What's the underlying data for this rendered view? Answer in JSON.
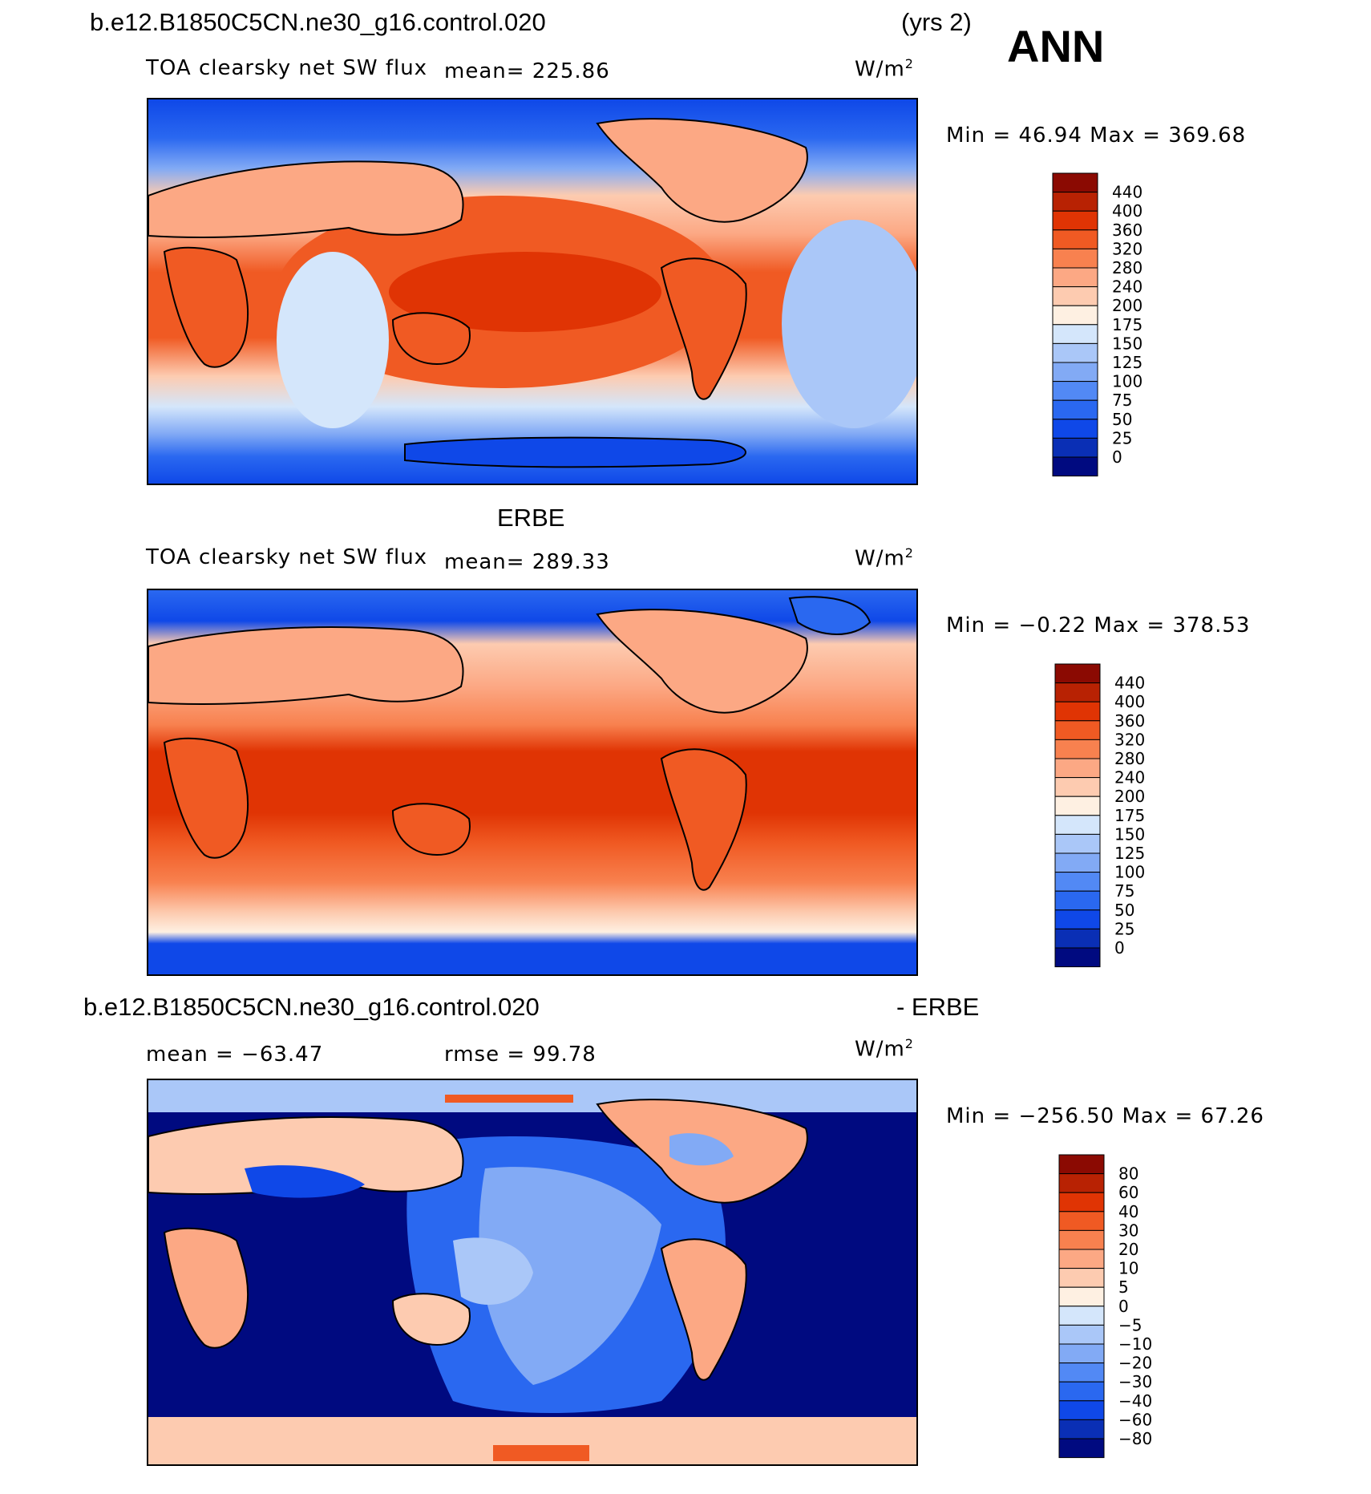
{
  "top": {
    "case_title": "b.e12.B1850C5CN.ne30_g16.control.020",
    "years": "(yrs 2)",
    "season": "ANN",
    "var_label": "TOA clearsky net SW flux",
    "mean_label": "mean= 225.86",
    "units_base": "W/m",
    "units_exp": "2",
    "minmax": "Min =   46.94  Max = 369.68"
  },
  "middle": {
    "case_title": "ERBE",
    "var_label": "TOA clearsky net SW flux",
    "mean_label": "mean= 289.33",
    "units_base": "W/m",
    "units_exp": "2",
    "minmax": "Min =   −0.22  Max = 378.53"
  },
  "bottom": {
    "case_title": "b.e12.B1850C5CN.ne30_g16.control.020",
    "minus_label": "- ERBE",
    "mean_label": "mean = −63.47",
    "rmse_label": "rmse =   99.78",
    "units_base": "W/m",
    "units_exp": "2",
    "minmax": "Min = −256.50  Max =   67.26"
  },
  "colors": {
    "abs_scale": [
      "#000a80",
      "#0a2fb5",
      "#0f48e8",
      "#2a68f0",
      "#5289f5",
      "#82aaf5",
      "#aac7f8",
      "#d4e6fb",
      "#fef0e2",
      "#fdcbb0",
      "#fca884",
      "#f8814f",
      "#f05a23",
      "#e03404",
      "#b82203",
      "#8b0a02"
    ],
    "diff_scale": [
      "#000a80",
      "#0a2fb5",
      "#0f48e8",
      "#2a68f0",
      "#5289f5",
      "#82aaf5",
      "#aac7f8",
      "#d4e6fb",
      "#fef0e2",
      "#fdcbb0",
      "#fca884",
      "#f8814f",
      "#f05a23",
      "#e03404",
      "#b82203",
      "#8b0a02"
    ]
  },
  "chart_data": [
    {
      "type": "heatmap",
      "title": "TOA clearsky net SW flux",
      "case": "b.e12.B1850C5CN.ne30_g16.control.020",
      "season": "ANN",
      "units": "W/m2",
      "mean": 225.86,
      "min": 46.94,
      "max": 369.68,
      "levels": [
        0,
        25,
        50,
        75,
        100,
        125,
        150,
        175,
        200,
        240,
        280,
        320,
        360,
        400,
        440
      ],
      "level_labels": [
        "440",
        "400",
        "360",
        "320",
        "280",
        "240",
        "200",
        "175",
        "150",
        "125",
        "100",
        "75",
        "50",
        "25",
        "0"
      ]
    },
    {
      "type": "heatmap",
      "title": "TOA clearsky net SW flux",
      "case": "ERBE",
      "units": "W/m2",
      "mean": 289.33,
      "min": -0.22,
      "max": 378.53,
      "levels": [
        0,
        25,
        50,
        75,
        100,
        125,
        150,
        175,
        200,
        240,
        280,
        320,
        360,
        400,
        440
      ],
      "level_labels": [
        "440",
        "400",
        "360",
        "320",
        "280",
        "240",
        "200",
        "175",
        "150",
        "125",
        "100",
        "75",
        "50",
        "25",
        "0"
      ]
    },
    {
      "type": "heatmap",
      "title": "b.e12.B1850C5CN.ne30_g16.control.020 - ERBE",
      "units": "W/m2",
      "mean": -63.47,
      "rmse": 99.78,
      "min": -256.5,
      "max": 67.26,
      "levels": [
        -80,
        -60,
        -40,
        -30,
        -20,
        -10,
        -5,
        0,
        5,
        10,
        20,
        30,
        40,
        60,
        80
      ],
      "level_labels": [
        "80",
        "60",
        "40",
        "30",
        "20",
        "10",
        "5",
        "0",
        "−5",
        "−10",
        "−20",
        "−30",
        "−40",
        "−60",
        "−80"
      ]
    }
  ]
}
